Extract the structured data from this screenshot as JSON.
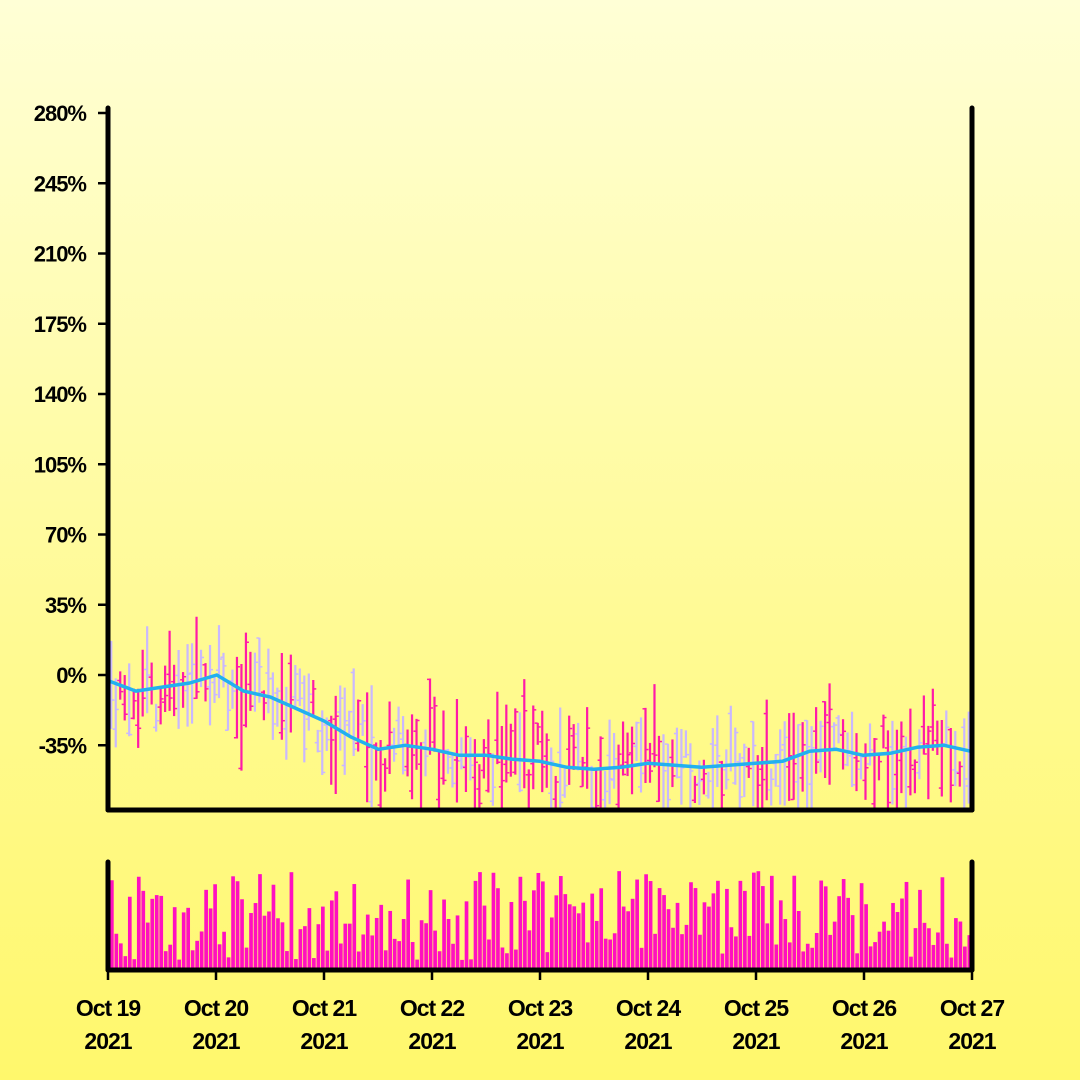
{
  "chart_data": {
    "type": "ohlc",
    "title": "",
    "ylabel": "",
    "xlabel": "",
    "y_format": "percent",
    "ylim": [
      -75,
      280
    ],
    "y_ticks": [
      280,
      245,
      210,
      175,
      140,
      105,
      70,
      35,
      0,
      -35
    ],
    "y_tick_labels": [
      "280%",
      "245%",
      "210%",
      "175%",
      "140%",
      "105%",
      "70%",
      "35%",
      "0%",
      "-35%"
    ],
    "x_range": [
      "2021-10-19",
      "2021-10-27"
    ],
    "x_ticks": [
      {
        "month_day": "Oct 19",
        "year": "2021"
      },
      {
        "month_day": "Oct 20",
        "year": "2021"
      },
      {
        "month_day": "Oct 21",
        "year": "2021"
      },
      {
        "month_day": "Oct 22",
        "year": "2021"
      },
      {
        "month_day": "Oct 23",
        "year": "2021"
      },
      {
        "month_day": "Oct 24",
        "year": "2021"
      },
      {
        "month_day": "Oct 25",
        "year": "2021"
      },
      {
        "month_day": "Oct 26",
        "year": "2021"
      },
      {
        "month_day": "Oct 27",
        "year": "2021"
      }
    ],
    "candles_per_day": 24,
    "up_color": "#ff1aa8",
    "down_color": "#c9b8ff",
    "moving_average_color": "#22b0ef",
    "volume_color": "#ff10c0",
    "moving_average": [
      {
        "x": "2021-10-19",
        "y": -3
      },
      {
        "x": "2021-10-19T06:00",
        "y": -8
      },
      {
        "x": "2021-10-19T12:00",
        "y": -6
      },
      {
        "x": "2021-10-19T18:00",
        "y": -4
      },
      {
        "x": "2021-10-20",
        "y": 0
      },
      {
        "x": "2021-10-20T06:00",
        "y": -8
      },
      {
        "x": "2021-10-20T12:00",
        "y": -11
      },
      {
        "x": "2021-10-20T18:00",
        "y": -17
      },
      {
        "x": "2021-10-21",
        "y": -23
      },
      {
        "x": "2021-10-21T06:00",
        "y": -31
      },
      {
        "x": "2021-10-21T12:00",
        "y": -37
      },
      {
        "x": "2021-10-21T18:00",
        "y": -35
      },
      {
        "x": "2021-10-22",
        "y": -37
      },
      {
        "x": "2021-10-22T06:00",
        "y": -40
      },
      {
        "x": "2021-10-22T12:00",
        "y": -40
      },
      {
        "x": "2021-10-22T18:00",
        "y": -42
      },
      {
        "x": "2021-10-23",
        "y": -43
      },
      {
        "x": "2021-10-23T06:00",
        "y": -46
      },
      {
        "x": "2021-10-23T12:00",
        "y": -47
      },
      {
        "x": "2021-10-23T18:00",
        "y": -46
      },
      {
        "x": "2021-10-24",
        "y": -44
      },
      {
        "x": "2021-10-24T06:00",
        "y": -45
      },
      {
        "x": "2021-10-24T12:00",
        "y": -46
      },
      {
        "x": "2021-10-24T18:00",
        "y": -45
      },
      {
        "x": "2021-10-25",
        "y": -44
      },
      {
        "x": "2021-10-25T06:00",
        "y": -43
      },
      {
        "x": "2021-10-25T12:00",
        "y": -38
      },
      {
        "x": "2021-10-25T18:00",
        "y": -37
      },
      {
        "x": "2021-10-26",
        "y": -40
      },
      {
        "x": "2021-10-26T06:00",
        "y": -39
      },
      {
        "x": "2021-10-26T12:00",
        "y": -36
      },
      {
        "x": "2021-10-26T18:00",
        "y": -35
      },
      {
        "x": "2021-10-27",
        "y": -38
      }
    ]
  }
}
